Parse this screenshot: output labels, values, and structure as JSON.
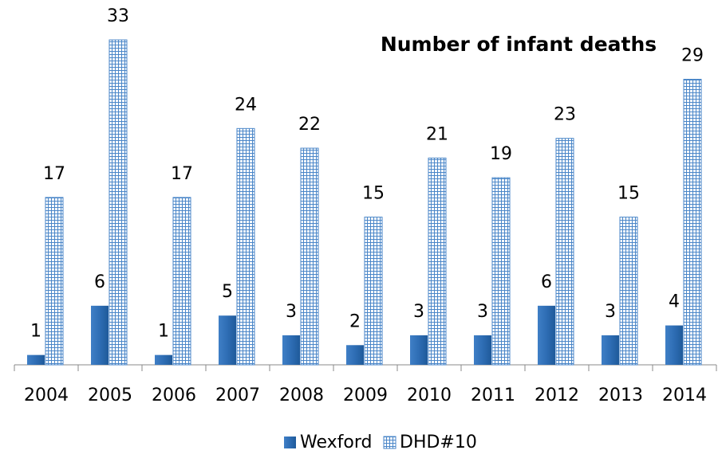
{
  "chart_data": {
    "type": "bar",
    "title": "Number of infant deaths",
    "categories": [
      "2004",
      "2005",
      "2006",
      "2007",
      "2008",
      "2009",
      "2010",
      "2011",
      "2012",
      "2013",
      "2014"
    ],
    "series": [
      {
        "name": "Wexford",
        "color": "#2e6db4",
        "values": [
          1,
          6,
          1,
          5,
          3,
          2,
          3,
          3,
          6,
          3,
          4
        ]
      },
      {
        "name": "DHD#10",
        "color": "#4a86c8",
        "values": [
          17,
          33,
          17,
          24,
          22,
          15,
          21,
          19,
          23,
          15,
          29
        ]
      }
    ],
    "ylim": [
      0,
      36
    ],
    "legend": "bottom"
  }
}
